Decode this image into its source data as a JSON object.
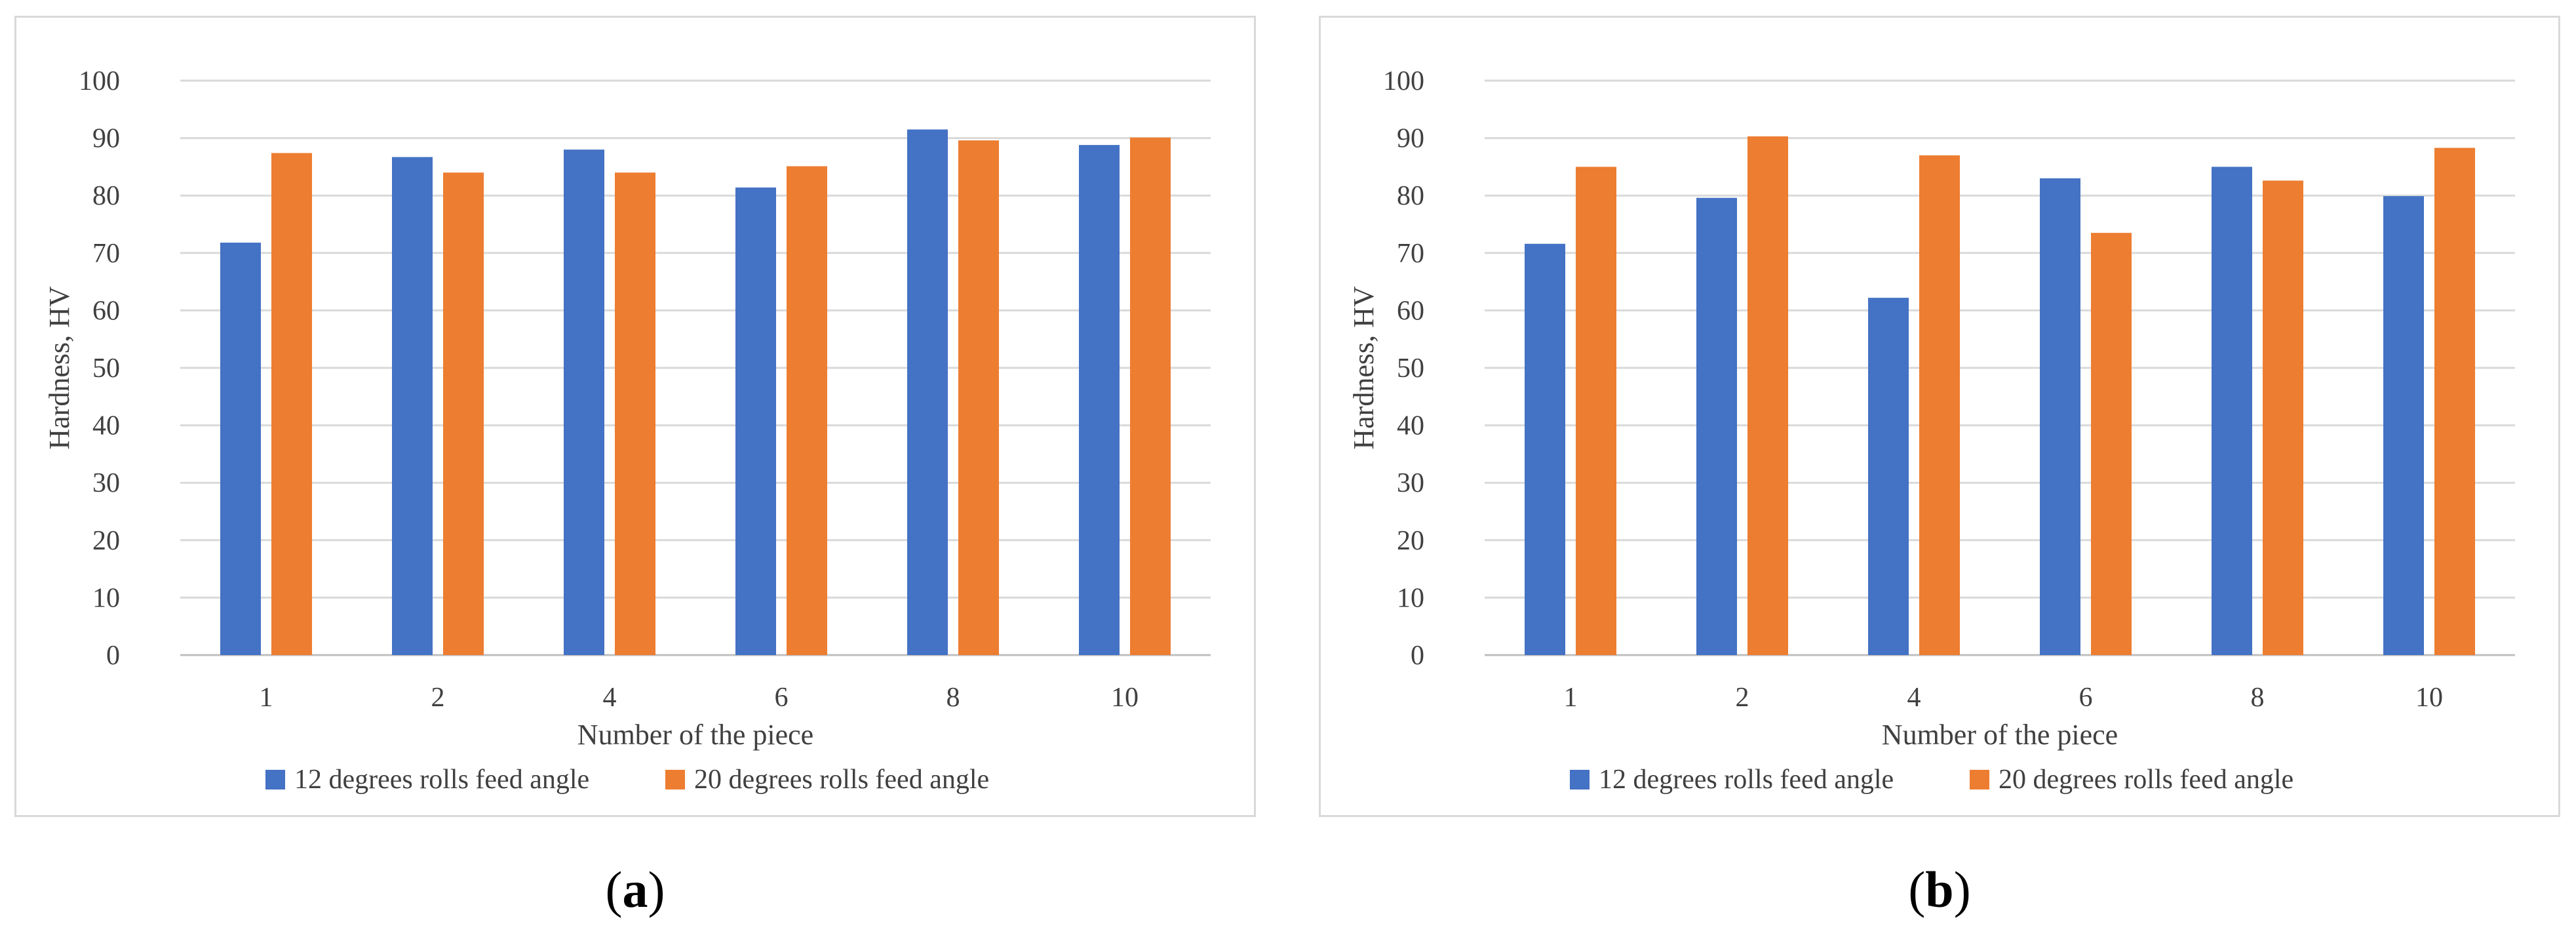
{
  "chart_data": [
    {
      "type": "bar",
      "panel_label": "a",
      "categories": [
        "1",
        "2",
        "4",
        "6",
        "8",
        "10"
      ],
      "series": [
        {
          "name": "12 degrees rolls feed angle",
          "color": "#4472C4",
          "values": [
            71.8,
            86.7,
            88.0,
            81.4,
            91.5,
            88.8
          ]
        },
        {
          "name": "20 degrees rolls feed angle",
          "color": "#ED7D31",
          "values": [
            87.4,
            84.0,
            84.0,
            85.1,
            89.6,
            90.1
          ]
        }
      ],
      "xlabel": "Number of the piece",
      "ylabel": "Hardness, HV",
      "ylim": [
        0,
        100
      ],
      "yticks": [
        "0",
        "10",
        "20",
        "30",
        "40",
        "50",
        "60",
        "70",
        "80",
        "90",
        "100"
      ],
      "grid": true,
      "legend": "bottom"
    },
    {
      "type": "bar",
      "panel_label": "b",
      "categories": [
        "1",
        "2",
        "4",
        "6",
        "8",
        "10"
      ],
      "series": [
        {
          "name": "12 degrees rolls feed angle",
          "color": "#4472C4",
          "values": [
            71.6,
            79.6,
            62.2,
            83.0,
            85.0,
            79.9
          ]
        },
        {
          "name": "20 degrees rolls feed angle",
          "color": "#ED7D31",
          "values": [
            85.0,
            90.3,
            87.0,
            73.5,
            82.6,
            88.3
          ]
        }
      ],
      "xlabel": "Number of the piece",
      "ylabel": "Hardness, HV",
      "ylim": [
        0,
        100
      ],
      "yticks": [
        "0",
        "10",
        "20",
        "30",
        "40",
        "50",
        "60",
        "70",
        "80",
        "90",
        "100"
      ],
      "grid": true,
      "legend": "bottom"
    }
  ],
  "captions": [
    {
      "open": "(",
      "label": "a",
      "close": ")"
    },
    {
      "open": "(",
      "label": "b",
      "close": ")"
    }
  ]
}
